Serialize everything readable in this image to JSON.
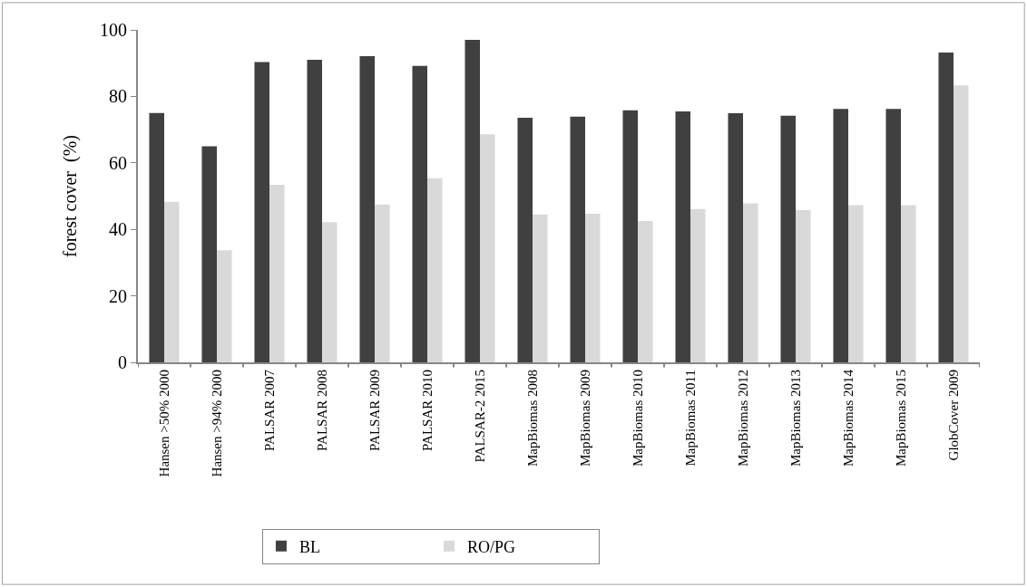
{
  "chart_data": {
    "type": "bar",
    "ylabel": "forest cover  (%)",
    "categories": [
      "Hansen >50% 2000",
      "Hansen >94% 2000",
      "PALSAR 2007",
      "PALSAR 2008",
      "PALSAR 2009",
      "PALSAR 2010",
      "PALSAR-2 2015",
      "MapBiomas 2008",
      "MapBiomas 2009",
      "MapBiomas 2010",
      "MapBiomas 2011",
      "MapBiomas 2012",
      "MapBiomas 2013",
      "MapBiomas 2014",
      "MapBiomas 2015",
      "GlobCover 2009"
    ],
    "series": [
      {
        "name": "BL",
        "color": "#404040",
        "values": [
          75.0,
          65.0,
          90.3,
          91.0,
          92.1,
          89.2,
          97.0,
          73.6,
          73.9,
          75.8,
          75.5,
          74.9,
          74.2,
          76.2,
          76.2,
          93.2
        ]
      },
      {
        "name": "RO/PG",
        "color": "#d9d9d9",
        "values": [
          48.3,
          33.7,
          53.4,
          42.2,
          47.5,
          55.4,
          68.6,
          44.5,
          44.7,
          42.5,
          46.1,
          47.8,
          45.8,
          47.3,
          47.3,
          83.3
        ]
      }
    ],
    "ylim": [
      0,
      100
    ],
    "yticks": [
      0,
      20,
      40,
      60,
      80,
      100
    ],
    "legend": "bottom"
  }
}
